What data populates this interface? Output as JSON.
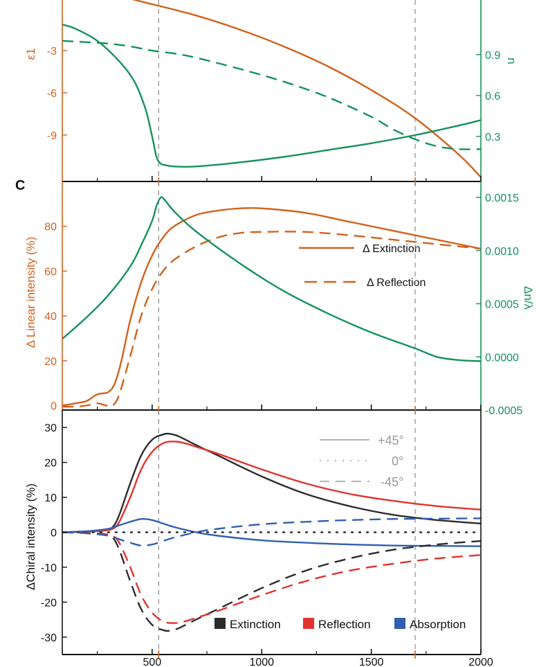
{
  "colors": {
    "orange": "#d2611c",
    "green": "#13925a",
    "black": "#2b2b2b",
    "red": "#e2332e",
    "blue": "#2f5fb0",
    "gray": "#b4b4b4",
    "dash": "#8a8a8a",
    "axis": "#111111"
  },
  "chart_data": [
    {
      "id": "top",
      "type": "line",
      "x_range": [
        90,
        2000
      ],
      "vlines": [
        530,
        1700
      ],
      "left_axis": {
        "label": "ε1",
        "range": [
          -12.3,
          0.6
        ],
        "ticks": [
          {
            "v": -3,
            "label": "-3"
          },
          {
            "v": -6,
            "label": "-6"
          },
          {
            "v": -9,
            "label": "-9"
          }
        ]
      },
      "right_axis": {
        "label": "n",
        "range": [
          -0.03,
          1.3
        ],
        "ticks": [
          {
            "v": 0.9,
            "label": "0.9"
          },
          {
            "v": 0.6,
            "label": "0.6"
          },
          {
            "v": 0.3,
            "label": "0.3"
          }
        ]
      },
      "series": [
        {
          "name": "ε1",
          "axis": "left",
          "color": "orange",
          "style": "solid",
          "x": [
            90,
            300,
            500,
            700,
            900,
            1100,
            1300,
            1500,
            1700,
            1900,
            2000
          ],
          "y": [
            1.2,
            1.0,
            0.3,
            -0.5,
            -1.5,
            -2.7,
            -4.1,
            -5.8,
            -7.8,
            -10.4,
            -12.0
          ]
        },
        {
          "name": "n (dashed)",
          "axis": "left",
          "color": "green",
          "style": "dashed",
          "x": [
            90,
            200,
            300,
            400,
            500,
            600,
            700,
            900,
            1100,
            1300,
            1500,
            1600,
            1700,
            1800,
            1900,
            2000
          ],
          "y": [
            -2.3,
            -2.4,
            -2.5,
            -2.7,
            -3.0,
            -3.2,
            -3.5,
            -4.3,
            -5.2,
            -6.3,
            -7.7,
            -8.6,
            -9.3,
            -9.8,
            -10.0,
            -10.0
          ]
        },
        {
          "name": "n",
          "axis": "right",
          "color": "green",
          "style": "solid",
          "x": [
            90,
            150,
            250,
            350,
            420,
            470,
            500,
            520,
            540,
            560,
            600,
            700,
            900,
            1100,
            1300,
            1500,
            1700,
            1900,
            2000
          ],
          "y": [
            1.12,
            1.09,
            1.0,
            0.85,
            0.7,
            0.5,
            0.3,
            0.15,
            0.1,
            0.09,
            0.08,
            0.08,
            0.11,
            0.15,
            0.2,
            0.25,
            0.31,
            0.38,
            0.42
          ]
        }
      ]
    },
    {
      "id": "middle",
      "type": "line",
      "panel_label": "C",
      "x_range": [
        90,
        2000
      ],
      "vlines": [
        530,
        1700
      ],
      "left_axis": {
        "label": "Δ Linear intensity (%)",
        "range": [
          -2,
          100
        ],
        "ticks": [
          {
            "v": 0,
            "label": "0"
          },
          {
            "v": 20,
            "label": "20"
          },
          {
            "v": 40,
            "label": "40"
          },
          {
            "v": 60,
            "label": "60"
          },
          {
            "v": 80,
            "label": "80"
          }
        ]
      },
      "right_axis": {
        "label": "Δn/λ",
        "range": [
          -0.0005,
          0.00165
        ],
        "ticks": [
          {
            "v": 0.0015,
            "label": "0.0015"
          },
          {
            "v": 0.001,
            "label": "0.0010"
          },
          {
            "v": 0.0005,
            "label": "0.0005"
          },
          {
            "v": 0.0,
            "label": "0.0000"
          },
          {
            "v": -0.0005,
            "label": "-0.0005"
          }
        ]
      },
      "series": [
        {
          "name": "Δ Extinction",
          "axis": "left",
          "color": "orange",
          "style": "solid",
          "x": [
            90,
            150,
            200,
            250,
            300,
            330,
            360,
            400,
            450,
            500,
            550,
            600,
            700,
            800,
            900,
            1000,
            1200,
            1400,
            1600,
            1800,
            2000
          ],
          "y": [
            0,
            1,
            2,
            5,
            6,
            10,
            20,
            38,
            55,
            67,
            75,
            80,
            85,
            87,
            88,
            88,
            86,
            82,
            78,
            74,
            70
          ]
        },
        {
          "name": "Δ Reflection",
          "axis": "left",
          "color": "orange",
          "style": "dashed",
          "x": [
            90,
            150,
            200,
            250,
            290,
            320,
            350,
            400,
            450,
            500,
            550,
            600,
            700,
            800,
            900,
            1000,
            1200,
            1400,
            1600,
            1800,
            2000
          ],
          "y": [
            -0.5,
            -0.5,
            0,
            1,
            0,
            0,
            5,
            22,
            40,
            52,
            60,
            65,
            71,
            75,
            77,
            77.5,
            77.5,
            76,
            74,
            72,
            70
          ]
        },
        {
          "name": "Δn/λ",
          "axis": "right",
          "color": "green",
          "style": "solid",
          "x": [
            90,
            200,
            300,
            400,
            450,
            500,
            520,
            540,
            560,
            600,
            700,
            900,
            1100,
            1300,
            1500,
            1700,
            1800,
            1900,
            2000
          ],
          "y": [
            0.00017,
            0.00037,
            0.00058,
            0.00085,
            0.00105,
            0.00128,
            0.00142,
            0.0015,
            0.00147,
            0.00137,
            0.00118,
            0.00088,
            0.00062,
            0.00041,
            0.00023,
            8e-05,
            0.0,
            -3e-05,
            -4e-05
          ]
        }
      ],
      "legend": [
        {
          "label": "Δ Extinction",
          "style": "solid"
        },
        {
          "label": "Δ Reflection",
          "style": "dashed"
        }
      ]
    },
    {
      "id": "bottom",
      "type": "line",
      "x_range": [
        90,
        2000
      ],
      "vlines": [
        530,
        1700
      ],
      "x_axis": {
        "ticks": [
          {
            "v": 500,
            "label": "500"
          },
          {
            "v": 1000,
            "label": "1000"
          },
          {
            "v": 1500,
            "label": "1500"
          },
          {
            "v": 2000,
            "label": "2000"
          }
        ]
      },
      "left_axis": {
        "label": "ΔChiral intensity (%)",
        "range": [
          -35,
          35
        ],
        "ticks": [
          {
            "v": 30,
            "label": "30"
          },
          {
            "v": 20,
            "label": "20"
          },
          {
            "v": 10,
            "label": "10"
          },
          {
            "v": 0,
            "label": "0"
          },
          {
            "v": -10,
            "label": "-10"
          },
          {
            "v": -20,
            "label": "-20"
          },
          {
            "v": -30,
            "label": "-30"
          }
        ]
      },
      "series": [
        {
          "name": "Extinction +45°",
          "color": "black",
          "style": "solid",
          "x": [
            90,
            200,
            280,
            320,
            350,
            400,
            450,
            500,
            550,
            580,
            620,
            700,
            800,
            1000,
            1200,
            1400,
            1600,
            1800,
            2000
          ],
          "y": [
            0,
            0.2,
            0.5,
            1.5,
            5,
            14,
            22,
            26.5,
            28,
            28.2,
            27.5,
            25,
            22,
            16,
            11,
            7.5,
            5,
            3.5,
            2.5
          ]
        },
        {
          "name": "Reflection +45°",
          "color": "red",
          "style": "solid",
          "x": [
            90,
            200,
            280,
            320,
            350,
            400,
            450,
            500,
            550,
            600,
            650,
            700,
            800,
            1000,
            1200,
            1400,
            1600,
            1800,
            2000
          ],
          "y": [
            0,
            0.2,
            0.5,
            1,
            3,
            10,
            18,
            23,
            25.5,
            26,
            25.5,
            24.5,
            22.5,
            18,
            14,
            11,
            9,
            7.5,
            6.5
          ]
        },
        {
          "name": "Absorption +45°",
          "color": "blue",
          "style": "solid",
          "x": [
            90,
            200,
            300,
            350,
            400,
            450,
            500,
            550,
            600,
            700,
            800,
            1000,
            1200,
            1400,
            1600,
            1800,
            2000
          ],
          "y": [
            0,
            0.3,
            1,
            2,
            3,
            3.8,
            3.5,
            2.5,
            1.5,
            0,
            -1,
            -2.3,
            -3,
            -3.5,
            -3.8,
            -3.9,
            -4
          ]
        },
        {
          "name": "Extinction 0°",
          "color": "black",
          "style": "dotted",
          "x": [
            90,
            2000
          ],
          "y": [
            0,
            0
          ]
        },
        {
          "name": "Extinction -45°",
          "color": "black",
          "style": "dashed",
          "x": [
            90,
            200,
            280,
            320,
            350,
            400,
            450,
            500,
            550,
            580,
            620,
            700,
            800,
            1000,
            1200,
            1400,
            1600,
            1800,
            2000
          ],
          "y": [
            0,
            -0.2,
            -0.5,
            -1.5,
            -5,
            -14,
            -22,
            -26.5,
            -28,
            -28.2,
            -27.5,
            -25,
            -22,
            -16,
            -11,
            -7.5,
            -5,
            -3.5,
            -2.5
          ]
        },
        {
          "name": "Reflection -45°",
          "color": "red",
          "style": "dashed",
          "x": [
            90,
            200,
            280,
            320,
            350,
            400,
            450,
            500,
            550,
            600,
            650,
            700,
            800,
            1000,
            1200,
            1400,
            1600,
            1800,
            2000
          ],
          "y": [
            0,
            -0.2,
            -0.5,
            -1,
            -3,
            -10,
            -18,
            -23,
            -25.5,
            -26,
            -25.5,
            -24.5,
            -22.5,
            -18,
            -14,
            -11,
            -9,
            -7.5,
            -6.5
          ]
        },
        {
          "name": "Absorption -45°",
          "color": "blue",
          "style": "dashed",
          "x": [
            90,
            200,
            300,
            350,
            400,
            450,
            500,
            550,
            600,
            700,
            800,
            1000,
            1200,
            1400,
            1600,
            1800,
            2000
          ],
          "y": [
            0,
            -0.3,
            -1,
            -2,
            -3,
            -3.8,
            -3.5,
            -2.5,
            -1.5,
            0,
            1,
            2.3,
            3,
            3.5,
            3.8,
            3.9,
            4
          ]
        }
      ],
      "angle_legend": [
        {
          "label": "+45°",
          "style": "solid"
        },
        {
          "label": "0°",
          "style": "dotted"
        },
        {
          "label": "-45°",
          "style": "dashed"
        }
      ],
      "type_legend": [
        {
          "label": "Extinction",
          "color": "black"
        },
        {
          "label": "Reflection",
          "color": "red"
        },
        {
          "label": "Absorption",
          "color": "blue"
        }
      ]
    }
  ]
}
